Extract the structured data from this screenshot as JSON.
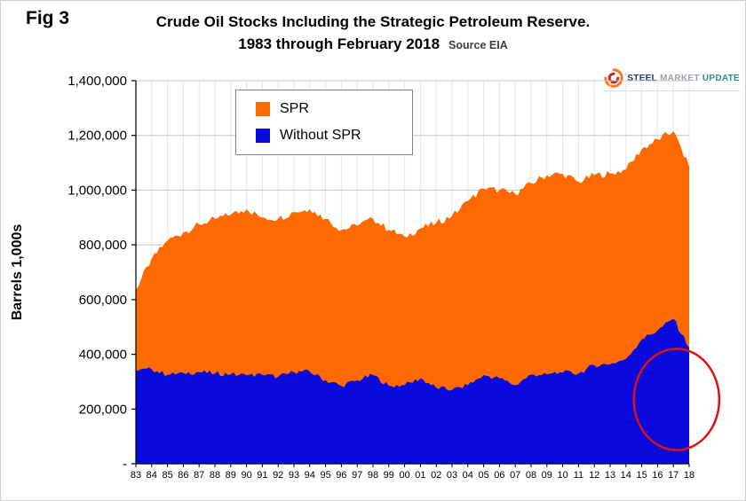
{
  "fig_label": "Fig 3",
  "title": {
    "line1": "Crude Oil Stocks Including the Strategic Petroleum Reserve.",
    "line2": "1983 through February 2018",
    "source": "Source EIA"
  },
  "logo": {
    "steel": "STEEL",
    "market": "MARKET",
    "update": "UPDATE"
  },
  "y_axis_title": "Barrels 1,000s",
  "colors": {
    "spr": "#FF6A00",
    "without_spr": "#0A0ADF",
    "annotation": "#E01010",
    "grid": "#C6C6C6",
    "minor_grid": "#E7E7E7",
    "axis": "#000000"
  },
  "chart_data": {
    "type": "area",
    "stacked": true,
    "title": "Crude Oil Stocks Including the Strategic Petroleum Reserve. 1983 through February 2018",
    "source": "EIA",
    "ylabel": "Barrels 1,000s",
    "ylim": [
      0,
      1400000
    ],
    "grid": true,
    "legend_position": "top-left-inside",
    "x_labels": [
      "83",
      "84",
      "85",
      "86",
      "87",
      "88",
      "89",
      "90",
      "91",
      "92",
      "93",
      "94",
      "95",
      "96",
      "97",
      "98",
      "99",
      "00",
      "01",
      "02",
      "03",
      "04",
      "05",
      "06",
      "07",
      "08",
      "09",
      "10",
      "11",
      "12",
      "13",
      "14",
      "15",
      "16",
      "17",
      "18"
    ],
    "y_tick_labels_bottom_to_top": [
      "-",
      "200,000",
      "400,000",
      "600,000",
      "800,000",
      "1,000,000",
      "1,200,000",
      "1,400,000"
    ],
    "legend": {
      "spr_label": "SPR",
      "without_spr_label": "Without SPR"
    },
    "series": [
      {
        "name": "Without SPR",
        "role": "without_spr",
        "values": [
          340000,
          345000,
          325000,
          332000,
          335000,
          330000,
          327000,
          323000,
          325000,
          318000,
          335000,
          337000,
          305000,
          285000,
          305000,
          324000,
          285000,
          287000,
          312000,
          278000,
          270000,
          286000,
          324000,
          312000,
          287000,
          326000,
          327000,
          333000,
          330000,
          360000,
          364000,
          383000,
          455000,
          487000,
          530000,
          425000
        ]
      },
      {
        "name": "SPR",
        "role": "spr",
        "values": [
          295000,
          405000,
          490000,
          513000,
          540000,
          565000,
          583000,
          607000,
          575000,
          577000,
          585000,
          593000,
          590000,
          570000,
          565000,
          571000,
          570000,
          543000,
          548000,
          602000,
          635000,
          674000,
          681000,
          688000,
          698000,
          699000,
          728000,
          727000,
          700000,
          695000,
          696000,
          692000,
          695000,
          698000,
          685000,
          660000
        ]
      }
    ],
    "annotation_ellipse": {
      "center_x_year_index": 34.2,
      "center_y_value": 235000,
      "radius_x_years": 2.7,
      "radius_y_value": 185000
    }
  }
}
